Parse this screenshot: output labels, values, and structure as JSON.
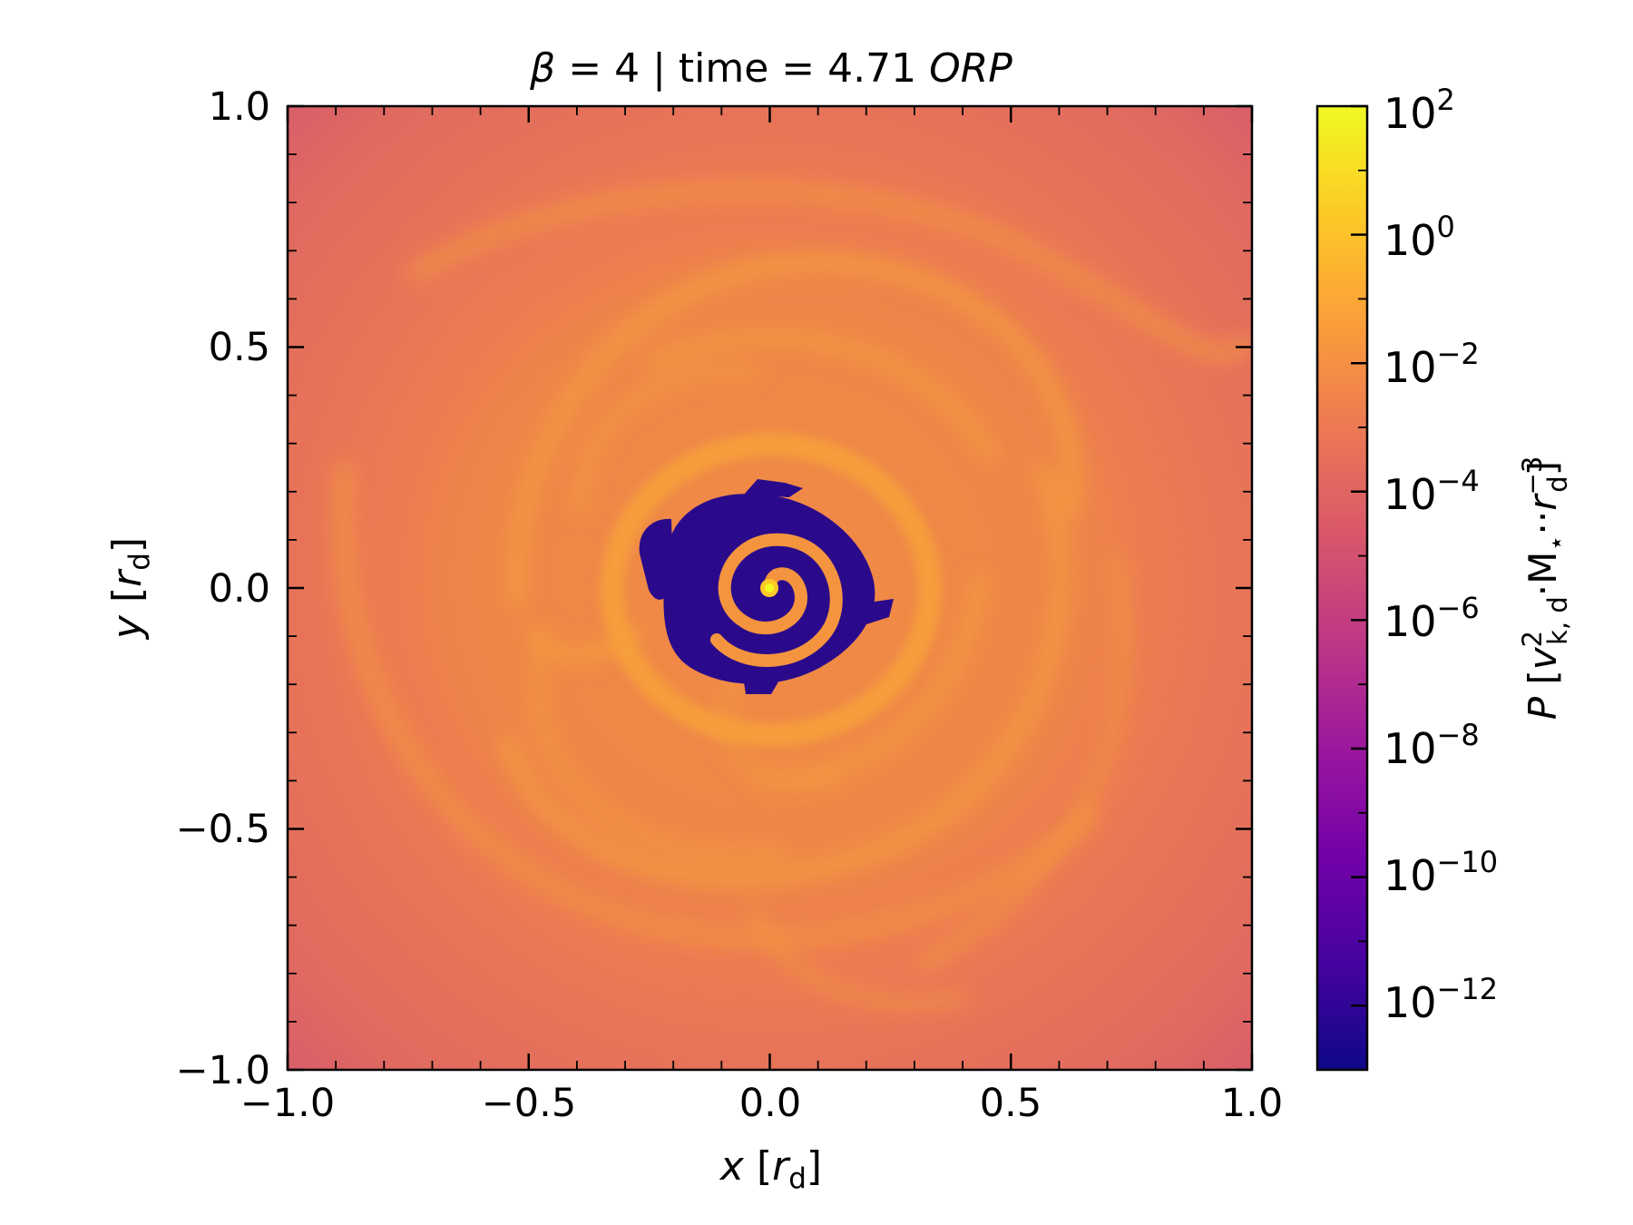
{
  "chart_data": {
    "type": "heatmap",
    "title": {
      "beta_symbol": "β",
      "beta_text": " = 4 | time = 4.71 ",
      "time_unit": "ORP"
    },
    "xlabel": {
      "var": "x",
      "pre": " [",
      "sym": "r",
      "sub": "d",
      "post": "]"
    },
    "ylabel": {
      "var": "y",
      "pre": " [",
      "sym": "r",
      "sub": "d",
      "post": "]"
    },
    "xlim": [
      -1.0,
      1.0
    ],
    "ylim": [
      -1.0,
      1.0
    ],
    "x_ticks": [
      "−1.0",
      "−0.5",
      "0.0",
      "0.5",
      "1.0"
    ],
    "y_ticks": [
      "−1.0",
      "−0.5",
      "0.0",
      "0.5",
      "1.0"
    ],
    "grid": false,
    "colorbar": {
      "scale": "log",
      "colormap": "plasma",
      "range_exponents": [
        -13,
        2
      ],
      "tick_exponents": [
        "2",
        "0",
        "−2",
        "−4",
        "−6",
        "−8",
        "−10",
        "−12"
      ],
      "tick_base": "10",
      "label": {
        "var": "P",
        "open": " [",
        "v": "v",
        "v_sup": "2",
        "v_sub": "k, d",
        "dot1": "·",
        "M": "M",
        "M_sub": "⋆",
        "dot2": "··",
        "r": "r",
        "r_sup": "−3",
        "r_sub": "d",
        "close": "]"
      }
    },
    "features": {
      "background_level": "10^-4",
      "spiral_arm_level": "10^-2",
      "inner_cavity_level": "10^-13",
      "central_peak_level": "10^2"
    }
  },
  "colors": {
    "colormap_stops": [
      "#0d0887",
      "#46039f",
      "#7201a8",
      "#9c179e",
      "#bd3786",
      "#d8576b",
      "#ed7953",
      "#fb9f3a",
      "#fdca26",
      "#f0f921"
    ],
    "background": "#dc6166",
    "spiral": "#f4913f",
    "cavity": "#2a0a8b",
    "axis": "#000000"
  }
}
